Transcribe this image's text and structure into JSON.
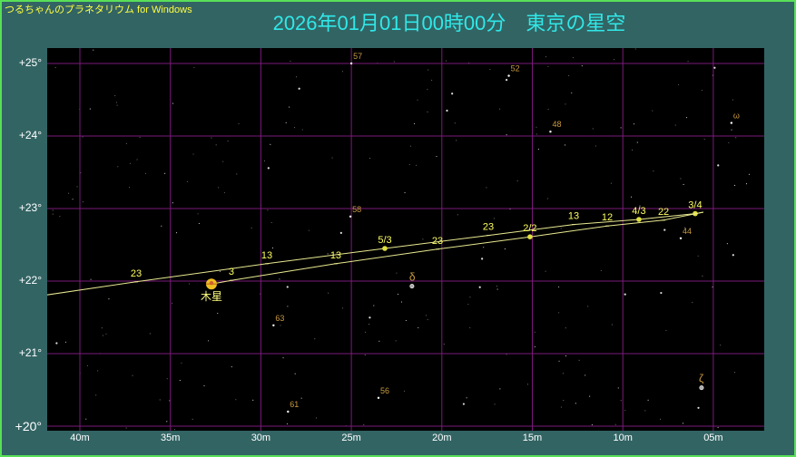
{
  "app_name": "つるちゃんのプラネタリウム for Windows",
  "title": "2026年01月01日00時00分　東京の星空",
  "colors": {
    "background": "#336464",
    "border": "#58e058",
    "grid": "#7a1a7a",
    "path": "#e8e890",
    "path_label": "#ffff60",
    "star_label": "#c89a40",
    "title": "#30e8e8"
  },
  "axes": {
    "dec_labels": [
      {
        "value": 25,
        "text": "+25°"
      },
      {
        "value": 24,
        "text": "+24°"
      },
      {
        "value": 23,
        "text": "+23°"
      },
      {
        "value": 22,
        "text": "+22°"
      },
      {
        "value": 21,
        "text": "+21°"
      },
      {
        "value": 20,
        "text": "+20°"
      }
    ],
    "ra_labels": [
      {
        "value": 40,
        "text": "40m"
      },
      {
        "value": 35,
        "text": "35m"
      },
      {
        "value": 30,
        "text": "30m"
      },
      {
        "value": 25,
        "text": "25m"
      },
      {
        "value": 20,
        "text": "20m"
      },
      {
        "value": 15,
        "text": "15m"
      },
      {
        "value": 10,
        "text": "10m"
      },
      {
        "value": 5,
        "text": "05m"
      }
    ],
    "ra_range_min": [
      41.8,
      2.2
    ],
    "dec_range": [
      19.95,
      25.2
    ]
  },
  "planet": {
    "name": "木星",
    "ra": 32.73,
    "dec": 21.96,
    "color": "#f0c020"
  },
  "path_upper": [
    {
      "ra": 41.81,
      "dec": 21.81,
      "label": ""
    },
    {
      "ra": 36.89,
      "dec": 21.99,
      "label": "23"
    },
    {
      "ra": 29.67,
      "dec": 22.24,
      "label": "13"
    },
    {
      "ra": 23.15,
      "dec": 22.45,
      "label": "5/3",
      "dot": true
    },
    {
      "ra": 17.43,
      "dec": 22.63,
      "label": "23"
    },
    {
      "ra": 12.72,
      "dec": 22.78,
      "label": "13"
    },
    {
      "ra": 9.11,
      "dec": 22.85,
      "label": "4/3",
      "dot": true
    },
    {
      "ra": 6.0,
      "dec": 22.93,
      "label": "3/4",
      "dot": true
    },
    {
      "ra": 5.55,
      "dec": 22.95,
      "label": ""
    }
  ],
  "path_lower": [
    {
      "ra": 32.73,
      "dec": 21.96,
      "label": ""
    },
    {
      "ra": 31.63,
      "dec": 22.01,
      "label": "3"
    },
    {
      "ra": 25.86,
      "dec": 22.24,
      "label": "13"
    },
    {
      "ra": 20.24,
      "dec": 22.44,
      "label": "23"
    },
    {
      "ra": 15.13,
      "dec": 22.61,
      "label": "2/2",
      "dot": true
    },
    {
      "ra": 10.86,
      "dec": 22.76,
      "label": "12"
    },
    {
      "ra": 7.75,
      "dec": 22.84,
      "label": "22"
    },
    {
      "ra": 5.55,
      "dec": 22.95,
      "label": ""
    }
  ],
  "named_stars": [
    {
      "label": "57",
      "ra": 25.0,
      "dec": 25.0
    },
    {
      "label": "52",
      "ra": 16.3,
      "dec": 24.83
    },
    {
      "label": "48",
      "ra": 14.0,
      "dec": 24.06
    },
    {
      "label": "ω",
      "ra": 4.0,
      "dec": 24.18
    },
    {
      "label": "58",
      "ra": 25.05,
      "dec": 22.89
    },
    {
      "label": "44",
      "ra": 6.8,
      "dec": 22.59
    },
    {
      "label": "δ",
      "ra": 21.65,
      "dec": 21.93,
      "double": true
    },
    {
      "label": "63",
      "ra": 29.3,
      "dec": 21.39
    },
    {
      "label": "56",
      "ra": 23.5,
      "dec": 20.39
    },
    {
      "label": "61",
      "ra": 28.5,
      "dec": 20.2
    },
    {
      "label": "ζ",
      "ra": 5.65,
      "dec": 20.53,
      "double": true
    }
  ]
}
